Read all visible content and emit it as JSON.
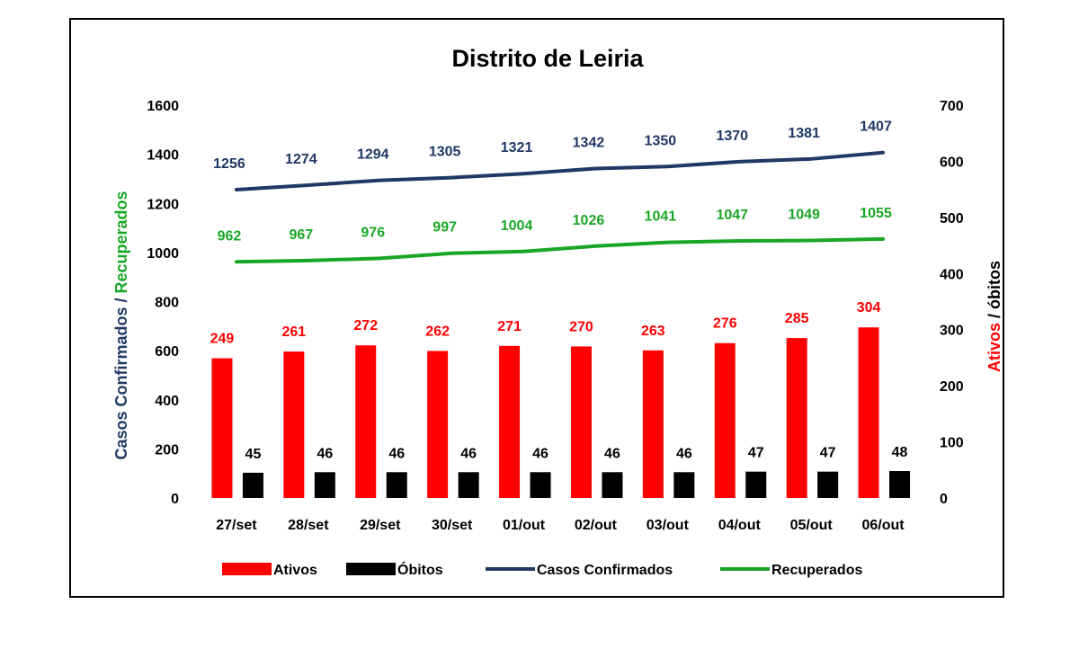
{
  "chart_data": {
    "type": "bar",
    "title": "Distrito de Leiria",
    "categories": [
      "27/set",
      "28/set",
      "29/set",
      "30/set",
      "01/out",
      "02/out",
      "03/out",
      "04/out",
      "05/out",
      "06/out"
    ],
    "series": [
      {
        "name": "Ativos",
        "type": "bar",
        "axis": "right",
        "color": "#ff0000",
        "values": [
          249,
          261,
          272,
          262,
          271,
          270,
          263,
          276,
          285,
          304
        ]
      },
      {
        "name": "Óbitos",
        "type": "bar",
        "axis": "right",
        "color": "#000000",
        "values": [
          45,
          46,
          46,
          46,
          46,
          46,
          46,
          47,
          47,
          48
        ]
      },
      {
        "name": "Casos Confirmados",
        "type": "line",
        "axis": "left",
        "color": "#1f3864",
        "values": [
          1256,
          1274,
          1294,
          1305,
          1321,
          1342,
          1350,
          1370,
          1381,
          1407
        ]
      },
      {
        "name": "Recuperados",
        "type": "line",
        "axis": "left",
        "color": "#1aa625",
        "values": [
          962,
          967,
          976,
          997,
          1004,
          1026,
          1041,
          1047,
          1049,
          1055
        ]
      }
    ],
    "y_left": {
      "label_parts": [
        {
          "text": "Casos Confirmados",
          "color": "#1f3864"
        },
        {
          "text": " / ",
          "color": "#1f3864"
        },
        {
          "text": "Recuperados",
          "color": "#1aa625"
        }
      ],
      "ylim": [
        0,
        1600
      ],
      "ticks": [
        0,
        200,
        400,
        600,
        800,
        1000,
        1200,
        1400,
        1600
      ]
    },
    "y_right": {
      "label_parts": [
        {
          "text": "Ativos",
          "color": "#ff0000"
        },
        {
          "text": " / óbitos",
          "color": "#000000"
        }
      ],
      "ylim": [
        0,
        700
      ],
      "ticks": [
        0,
        100,
        200,
        300,
        400,
        500,
        600,
        700
      ]
    },
    "grid": false,
    "legend_position": "bottom"
  }
}
